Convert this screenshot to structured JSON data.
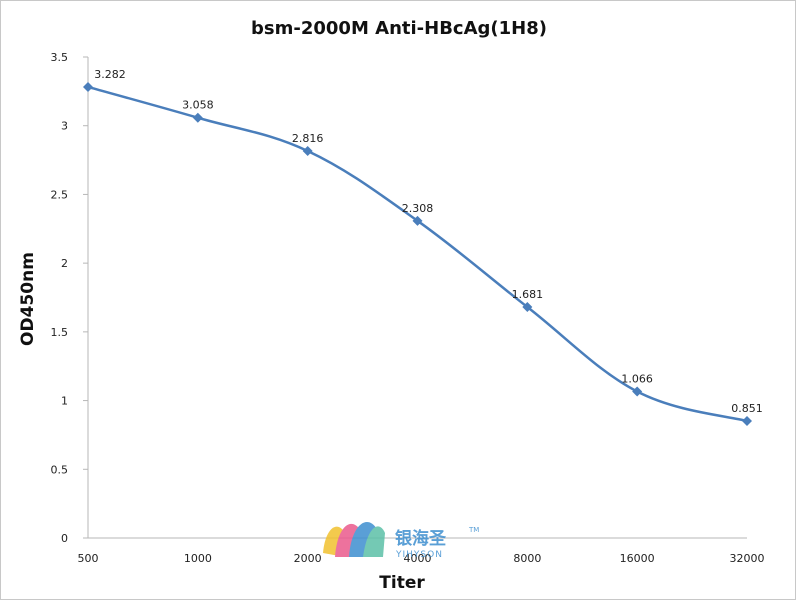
{
  "chart_data": {
    "type": "line",
    "title": "bsm-2000M Anti-HBcAg(1H8)",
    "xlabel": "Titer",
    "ylabel": "OD450nm",
    "categories": [
      "500",
      "1000",
      "2000",
      "4000",
      "8000",
      "16000",
      "32000"
    ],
    "series": [
      {
        "values": [
          3.282,
          3.058,
          2.816,
          2.308,
          1.681,
          1.066,
          0.851
        ],
        "data_labels": [
          "3.282",
          "3.058",
          "2.816",
          "2.308",
          "1.681",
          "1.066",
          "0.851"
        ]
      }
    ],
    "ylim": [
      0,
      3.5
    ],
    "yticks": [
      "0",
      "0.5",
      "1",
      "1.5",
      "2",
      "2.5",
      "3",
      "3.5"
    ],
    "grid": false,
    "legend": "none",
    "line_color": "#4a7ebb",
    "marker": "diamond"
  },
  "watermark": {
    "brand_cn": "银海圣",
    "brand_en": "YIHYSON",
    "trademark": "TM"
  }
}
